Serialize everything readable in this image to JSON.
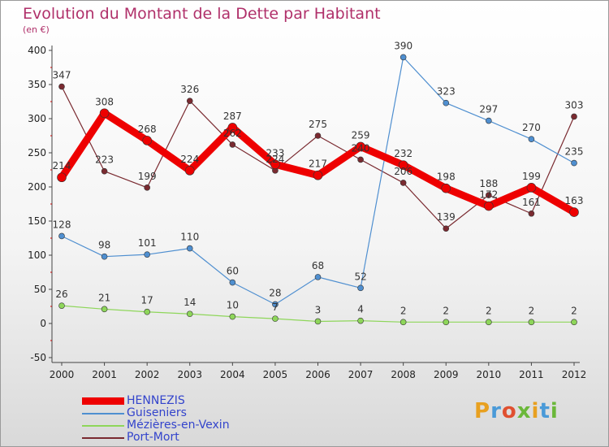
{
  "title": "Evolution du Montant de la Dette par Habitant",
  "subtitle": "(en €)",
  "logo": {
    "text": "Proxiti",
    "colors": [
      "#e8a020",
      "#4a9ad8",
      "#e05030",
      "#6bb83a",
      "#e8a020",
      "#4a9ad8",
      "#6bb83a"
    ]
  },
  "chart_data": {
    "type": "line",
    "x": [
      "2000",
      "2001",
      "2002",
      "2003",
      "2004",
      "2005",
      "2006",
      "2007",
      "2008",
      "2009",
      "2010",
      "2011",
      "2012"
    ],
    "ylim": [
      -50,
      400
    ],
    "yticks": [
      "-50",
      "0",
      "50",
      "100",
      "150",
      "200",
      "250",
      "300",
      "350",
      "400"
    ],
    "grid": false,
    "legend_position": "bottom-left",
    "series": [
      {
        "name": "HENNEZIS",
        "color": "#ee0000",
        "values": [
          214,
          308,
          268,
          224,
          287,
          233,
          217,
          259,
          232,
          198,
          172,
          199,
          163
        ],
        "labels": [
          "214",
          "308",
          "268",
          "224",
          "287",
          "233",
          "217",
          "259",
          "232",
          "198",
          "172",
          "199",
          "163"
        ]
      },
      {
        "name": "Guiseniers",
        "color": "#4f8fd0",
        "values": [
          128,
          98,
          101,
          110,
          60,
          28,
          68,
          52,
          390,
          323,
          297,
          270,
          235
        ],
        "labels": [
          "128",
          "98",
          "101",
          "110",
          "60",
          "28",
          "68",
          "52",
          "390",
          "323",
          "297",
          "270",
          "235"
        ]
      },
      {
        "name": "Mézières-en-Vexin",
        "color": "#8ed65a",
        "values": [
          26,
          21,
          17,
          14,
          10,
          7,
          3,
          4,
          2,
          2,
          2,
          2,
          2
        ],
        "labels": [
          "26",
          "21",
          "17",
          "14",
          "10",
          "7",
          "3",
          "4",
          "2",
          "2",
          "2",
          "2",
          "2"
        ]
      },
      {
        "name": "Port-Mort",
        "color": "#7a2a30",
        "values": [
          347,
          223,
          199,
          326,
          262,
          224,
          275,
          240,
          206,
          139,
          188,
          161,
          303
        ],
        "labels": [
          "347",
          "223",
          "199",
          "326",
          "262",
          "224",
          "275",
          "240",
          "206",
          "139",
          "188",
          "161",
          "303"
        ]
      }
    ]
  }
}
